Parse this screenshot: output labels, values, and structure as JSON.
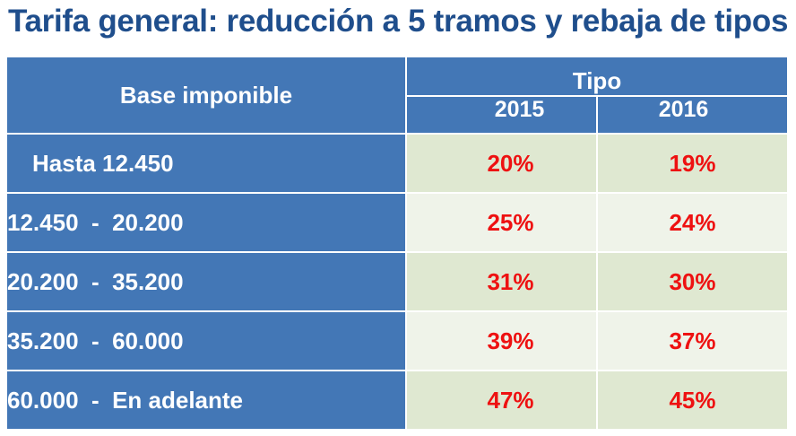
{
  "title": "Tarifa general: reducción a 5 tramos y rebaja de tipos",
  "table": {
    "header": {
      "base_label": "Base imponible",
      "tipo_label": "Tipo",
      "years": [
        "2015",
        "2016"
      ]
    },
    "rows": [
      {
        "band": "Hasta 12.450",
        "rate_2015": "20%",
        "rate_2016": "19%"
      },
      {
        "band": "12.450  -  20.200",
        "rate_2015": "25%",
        "rate_2016": "24%"
      },
      {
        "band": "20.200  -  35.200",
        "rate_2015": "31%",
        "rate_2016": "30%"
      },
      {
        "band": "35.200  -  60.000",
        "rate_2015": "39%",
        "rate_2016": "37%"
      },
      {
        "band": "60.000  -  En adelante",
        "rate_2015": "47%",
        "rate_2016": "45%"
      }
    ]
  },
  "colors": {
    "title": "#1f4e8c",
    "header_bg": "#4377b6",
    "rate_text": "#ee1111",
    "row_bg_dark": "#dfe8d1",
    "row_bg_light": "#eff3e9"
  }
}
